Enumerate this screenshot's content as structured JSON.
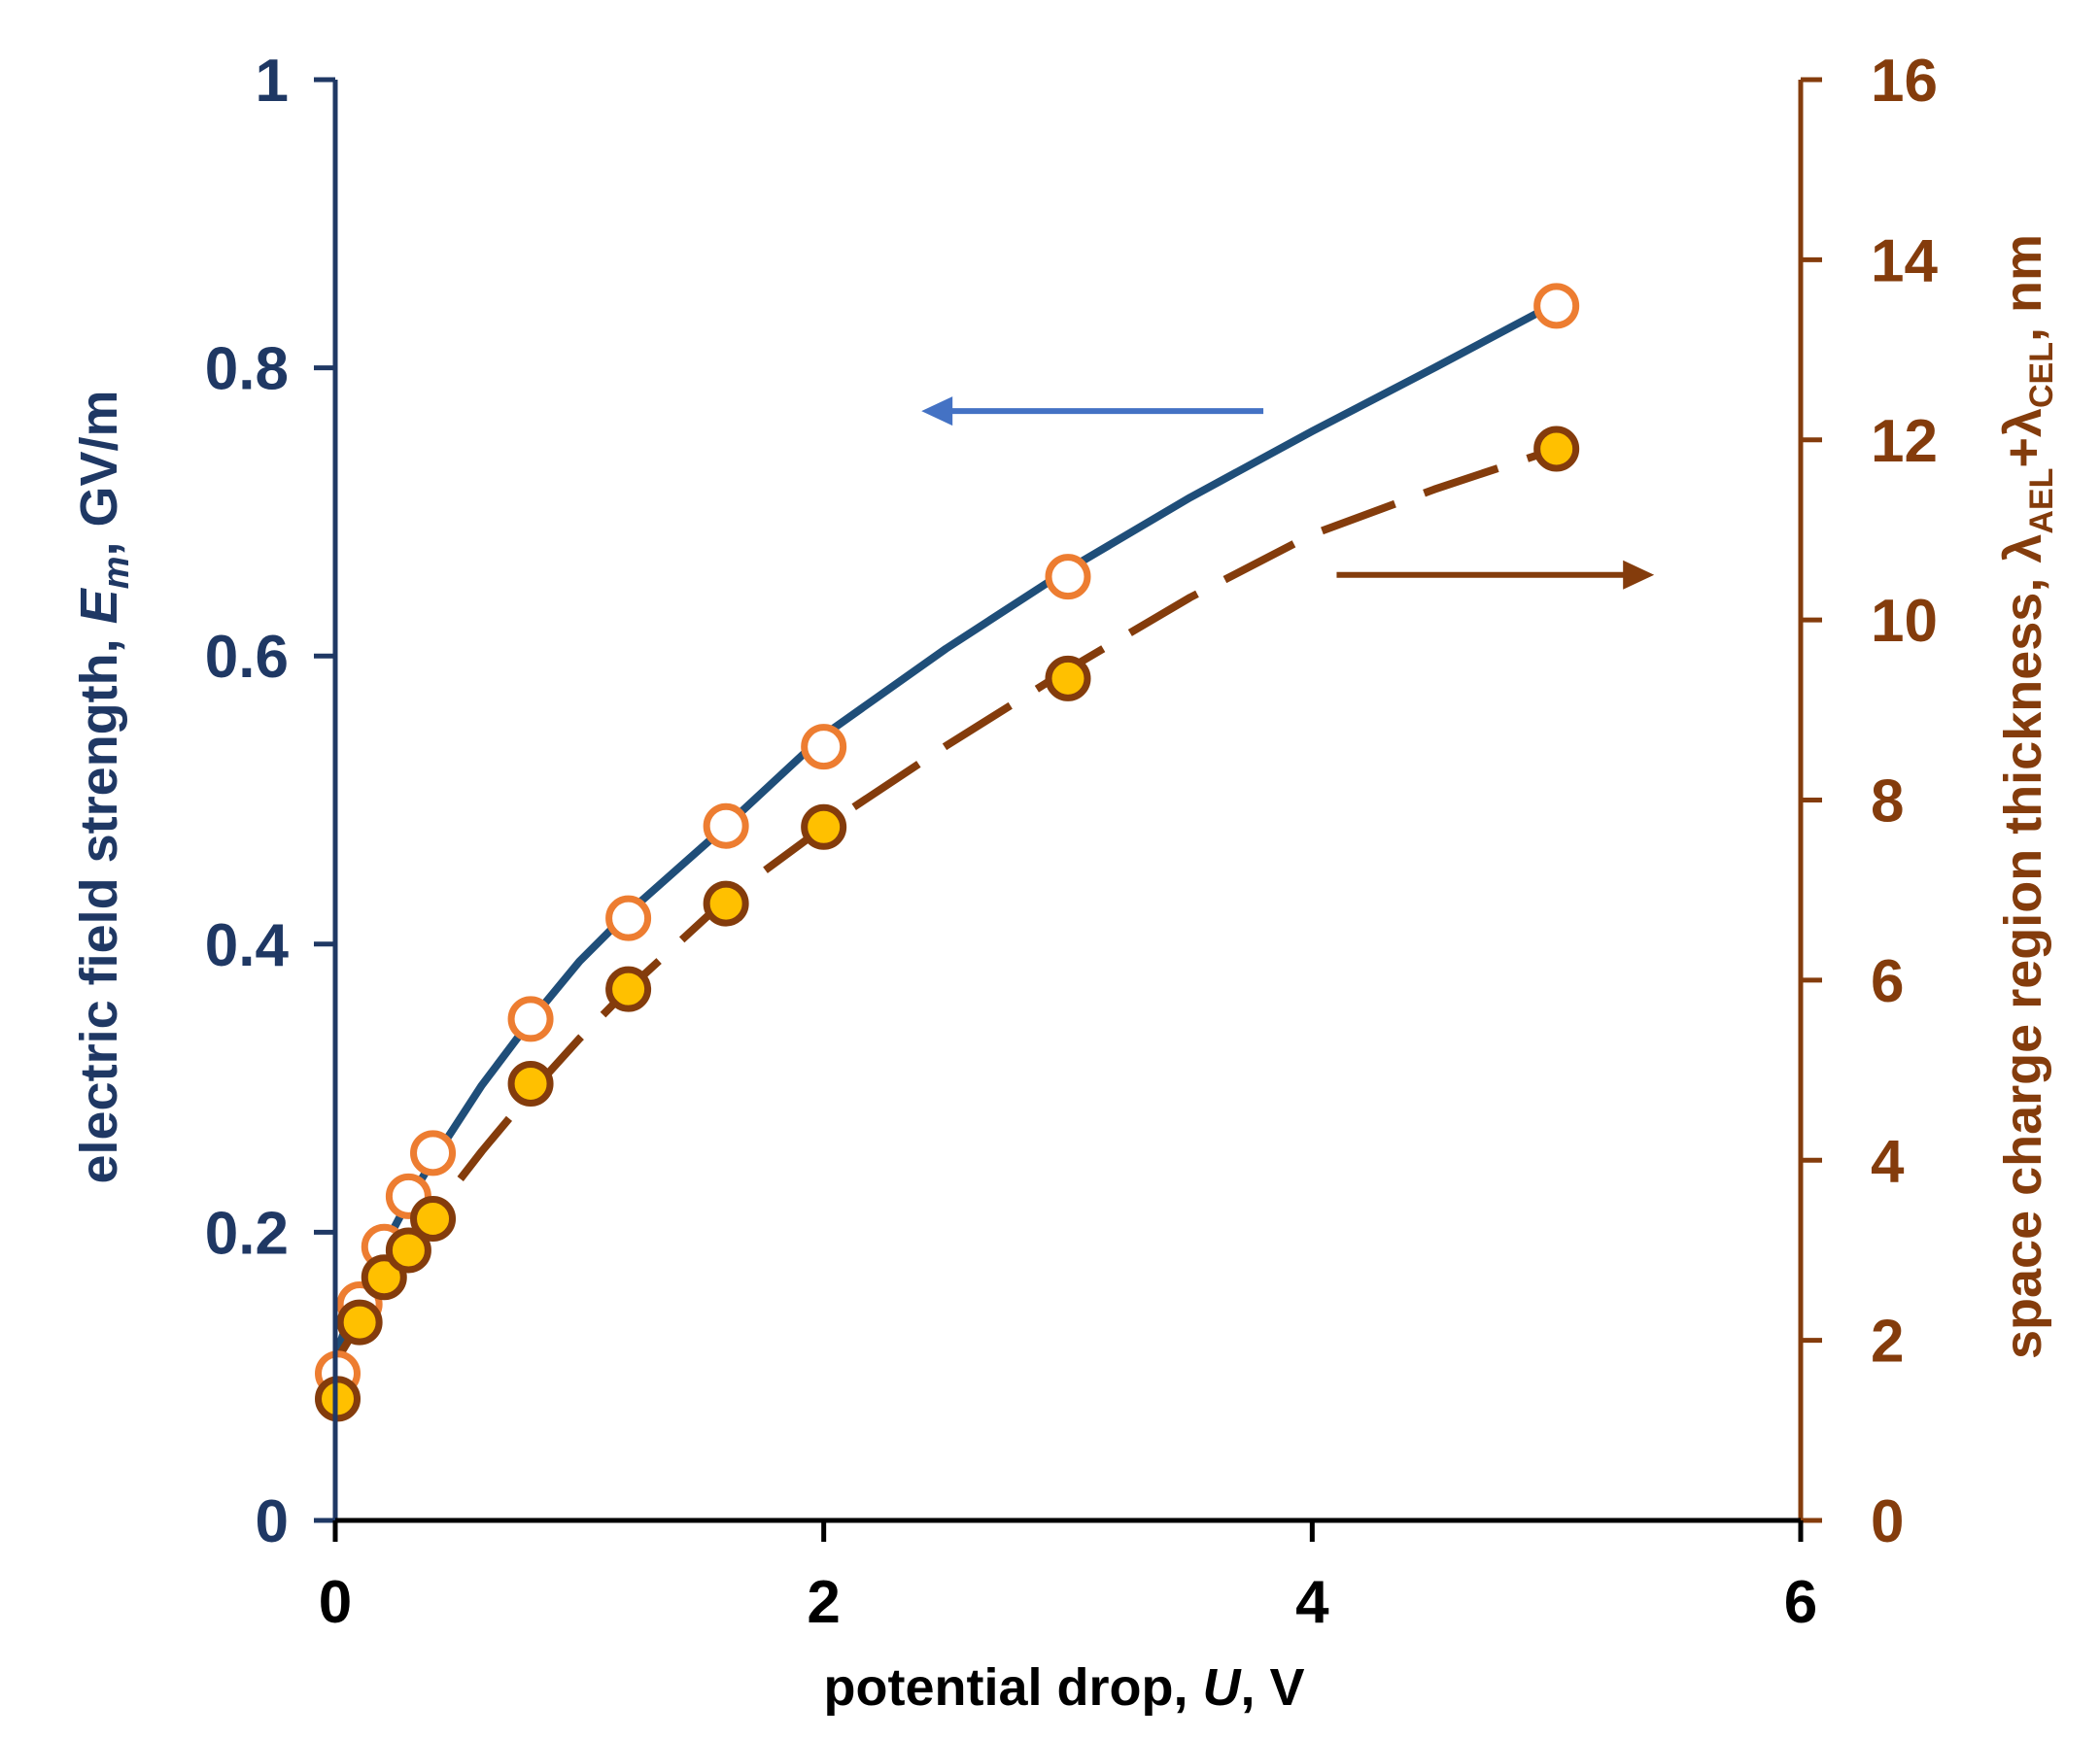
{
  "chart_data": {
    "type": "scatter",
    "x_axis": {
      "label_parts": [
        "potential drop, ",
        "U",
        ", V"
      ],
      "range": [
        0,
        6
      ],
      "ticks": [
        0,
        2,
        4,
        6
      ],
      "tick_labels": [
        "0",
        "2",
        "4",
        "6"
      ]
    },
    "y_axis_left": {
      "label_parts": [
        "electric field strength, ",
        "E",
        "m",
        ", GV/m"
      ],
      "range": [
        0,
        1
      ],
      "ticks": [
        0,
        0.2,
        0.4,
        0.6,
        0.8,
        1
      ],
      "tick_labels": [
        "0",
        "0.2",
        "0.4",
        "0.6",
        "0.8",
        "1"
      ],
      "color": "#1f3864"
    },
    "y_axis_right": {
      "label_parts": [
        "space charge region thickness, ",
        "λ",
        "AEL",
        "+",
        "λ",
        "CEL",
        ", nm"
      ],
      "range": [
        0,
        16
      ],
      "ticks": [
        0,
        2,
        4,
        6,
        8,
        10,
        12,
        14,
        16
      ],
      "tick_labels": [
        "0",
        "2",
        "4",
        "6",
        "8",
        "10",
        "12",
        "14",
        "16"
      ],
      "color": "#843c0c"
    },
    "series": [
      {
        "name": "electric field strength (points)",
        "axis": "left",
        "marker": "open-circle",
        "edge_color": "#ed7d31",
        "fill_color": "#ffffff",
        "x": [
          0.01,
          0.1,
          0.2,
          0.3,
          0.4,
          0.8,
          1.2,
          1.6,
          2.0,
          3.0,
          5.0
        ],
        "y": [
          0.102,
          0.15,
          0.19,
          0.225,
          0.255,
          0.348,
          0.418,
          0.482,
          0.537,
          0.655,
          0.843
        ]
      },
      {
        "name": "electric field strength (fit)",
        "axis": "left",
        "line": "solid",
        "color": "#1f4e79",
        "x": [
          0.01,
          0.05,
          0.1,
          0.2,
          0.3,
          0.4,
          0.6,
          0.8,
          1.0,
          1.2,
          1.6,
          2.0,
          2.5,
          3.0,
          3.5,
          4.0,
          4.5,
          5.0
        ],
        "y": [
          0.118,
          0.138,
          0.155,
          0.19,
          0.222,
          0.25,
          0.302,
          0.347,
          0.388,
          0.422,
          0.482,
          0.545,
          0.605,
          0.66,
          0.71,
          0.756,
          0.8,
          0.845
        ]
      },
      {
        "name": "space charge region thickness (points)",
        "axis": "right",
        "marker": "filled-circle",
        "edge_color": "#843c0c",
        "fill_color": "#ffc000",
        "x": [
          0.01,
          0.1,
          0.2,
          0.3,
          0.4,
          0.8,
          1.2,
          1.6,
          2.0,
          3.0,
          5.0
        ],
        "y": [
          1.35,
          2.2,
          2.7,
          3.0,
          3.35,
          4.85,
          5.9,
          6.85,
          7.7,
          9.35,
          11.9
        ]
      },
      {
        "name": "space charge region thickness (fit)",
        "axis": "right",
        "line": "dashed",
        "color": "#843c0c",
        "x": [
          0.01,
          0.1,
          0.2,
          0.3,
          0.4,
          0.6,
          0.8,
          1.0,
          1.2,
          1.6,
          2.0,
          2.5,
          3.0,
          3.5,
          4.0,
          4.5,
          5.0
        ],
        "y": [
          1.8,
          2.2,
          2.65,
          3.05,
          3.4,
          4.1,
          4.75,
          5.35,
          5.9,
          6.9,
          7.7,
          8.6,
          9.45,
          10.25,
          10.95,
          11.45,
          11.9
        ]
      }
    ],
    "annotations": [
      {
        "name": "arrow-to-left-axis",
        "direction": "left",
        "color": "#4472c4",
        "x_from": 3.8,
        "x_to": 2.4,
        "y_left": 0.77
      },
      {
        "name": "arrow-to-right-axis",
        "direction": "right",
        "color": "#843c0c",
        "x_from": 4.1,
        "x_to": 5.4,
        "y_right": 10.5
      }
    ],
    "grid": false,
    "legend": "none"
  }
}
